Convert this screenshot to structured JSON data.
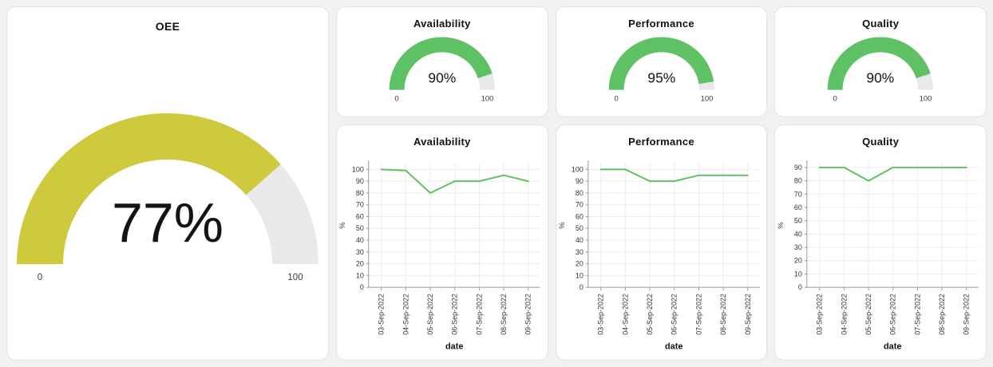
{
  "theme": {
    "green": "#5ec264",
    "yellow": "#cfc93e",
    "track": "#e9e9e9",
    "grid": "#ececec",
    "axis": "#9a9a9a",
    "tick_text": "#333333",
    "title_text": "#111111",
    "card_bg": "#ffffff",
    "card_border": "#e3e3e3",
    "page_bg": "#f1f1f1"
  },
  "chart_data": [
    {
      "type": "gauge",
      "title": "OEE",
      "value": 77,
      "value_label": "77%",
      "min": 0,
      "max": 100,
      "min_label": "0",
      "max_label": "100",
      "color": "#cfc93e",
      "track_color": "#e9e9e9"
    },
    {
      "type": "gauge",
      "title": "Availability",
      "value": 90,
      "value_label": "90%",
      "min": 0,
      "max": 100,
      "min_label": "0",
      "max_label": "100",
      "color": "#5ec264",
      "track_color": "#e9e9e9"
    },
    {
      "type": "gauge",
      "title": "Performance",
      "value": 95,
      "value_label": "95%",
      "min": 0,
      "max": 100,
      "min_label": "0",
      "max_label": "100",
      "color": "#5ec264",
      "track_color": "#e9e9e9"
    },
    {
      "type": "gauge",
      "title": "Quality",
      "value": 90,
      "value_label": "90%",
      "min": 0,
      "max": 100,
      "min_label": "0",
      "max_label": "100",
      "color": "#5ec264",
      "track_color": "#e9e9e9"
    },
    {
      "type": "line",
      "title": "Availability",
      "xlabel": "date",
      "ylabel": "%",
      "x": [
        "03-Sep-2022",
        "04-Sep-2022",
        "05-Sep-2022",
        "06-Sep-2022",
        "07-Sep-2022",
        "08-Sep-2022",
        "09-Sep-2022"
      ],
      "series": [
        {
          "name": "Availability",
          "color": "#5ec264",
          "values": [
            100,
            99,
            80,
            90,
            90,
            95,
            90
          ]
        }
      ],
      "yticks": [
        0,
        10,
        20,
        30,
        40,
        50,
        60,
        70,
        80,
        90,
        100
      ],
      "ylim": [
        0,
        105
      ],
      "grid": true,
      "legend": false
    },
    {
      "type": "line",
      "title": "Performance",
      "xlabel": "date",
      "ylabel": "%",
      "x": [
        "03-Sep-2022",
        "04-Sep-2022",
        "05-Sep-2022",
        "06-Sep-2022",
        "07-Sep-2022",
        "08-Sep-2022",
        "09-Sep-2022"
      ],
      "series": [
        {
          "name": "Performance",
          "color": "#5ec264",
          "values": [
            100,
            100,
            90,
            90,
            95,
            95,
            95
          ]
        }
      ],
      "yticks": [
        0,
        10,
        20,
        30,
        40,
        50,
        60,
        70,
        80,
        90,
        100
      ],
      "ylim": [
        0,
        105
      ],
      "grid": true,
      "legend": false
    },
    {
      "type": "line",
      "title": "Quality",
      "xlabel": "date",
      "ylabel": "%",
      "x": [
        "03-Sep-2022",
        "04-Sep-2022",
        "05-Sep-2022",
        "06-Sep-2022",
        "07-Sep-2022",
        "08-Sep-2022",
        "09-Sep-2022"
      ],
      "series": [
        {
          "name": "Quality",
          "color": "#5ec264",
          "values": [
            90,
            90,
            80,
            90,
            90,
            90,
            90
          ]
        }
      ],
      "yticks": [
        0,
        10,
        20,
        30,
        40,
        50,
        60,
        70,
        80,
        90
      ],
      "ylim": [
        0,
        93
      ],
      "grid": true,
      "legend": false
    }
  ]
}
